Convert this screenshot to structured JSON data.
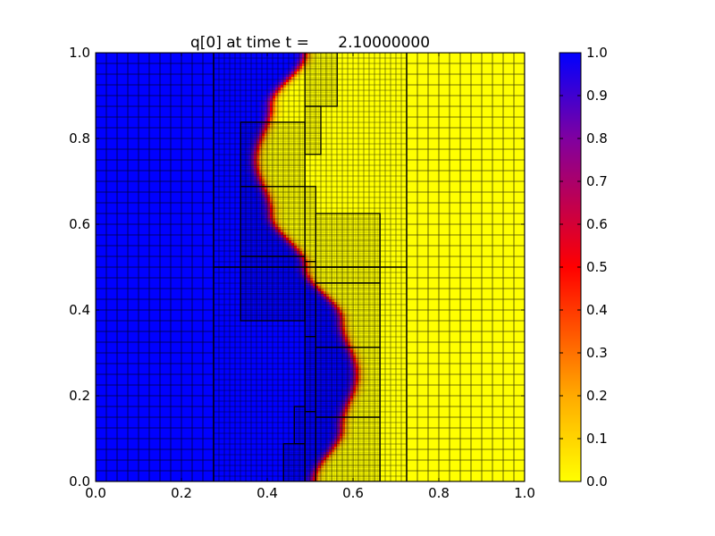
{
  "chart_data": {
    "type": "heatmap",
    "title": "q[0] at time t =      2.10000000",
    "xlabel": "",
    "ylabel": "",
    "xlim": [
      0.0,
      1.0
    ],
    "ylim": [
      0.0,
      1.0
    ],
    "x_ticks": [
      "0.0",
      "0.2",
      "0.4",
      "0.6",
      "0.8",
      "1.0"
    ],
    "y_ticks": [
      "0.0",
      "0.2",
      "0.4",
      "0.6",
      "0.8",
      "1.0"
    ],
    "colorbar": {
      "range": [
        0.0,
        1.0
      ],
      "ticks": [
        "0.0",
        "0.1",
        "0.2",
        "0.3",
        "0.4",
        "0.5",
        "0.6",
        "0.7",
        "0.8",
        "0.9",
        "1.0"
      ],
      "colormap": [
        {
          "value": 0.0,
          "color": "#ffff00"
        },
        {
          "value": 0.2,
          "color": "#ffaa00"
        },
        {
          "value": 0.5,
          "color": "#ff0000"
        },
        {
          "value": 0.8,
          "color": "#8000a0"
        },
        {
          "value": 1.0,
          "color": "#0000ff"
        }
      ]
    },
    "field": {
      "description_value_left": 1.0,
      "description_value_right": 0.0,
      "interface": [
        {
          "y": 0.0,
          "x": 0.51
        },
        {
          "y": 0.125,
          "x": 0.575
        },
        {
          "y": 0.25,
          "x": 0.61
        },
        {
          "y": 0.375,
          "x": 0.575
        },
        {
          "y": 0.5,
          "x": 0.49
        },
        {
          "y": 0.625,
          "x": 0.41
        },
        {
          "y": 0.75,
          "x": 0.375
        },
        {
          "y": 0.875,
          "x": 0.41
        },
        {
          "y": 1.0,
          "x": 0.49
        }
      ],
      "interface_width": 0.025
    },
    "amr_patches": [
      {
        "level": 1,
        "x0": 0.0,
        "x1": 0.275,
        "y0": 0.0,
        "y1": 1.0,
        "dx": 0.025
      },
      {
        "level": 1,
        "x0": 0.725,
        "x1": 1.0,
        "y0": 0.0,
        "y1": 1.0,
        "dx": 0.025
      },
      {
        "level": 2,
        "x0": 0.275,
        "x1": 0.725,
        "y0": 0.0,
        "y1": 0.5,
        "dx": 0.0125
      },
      {
        "level": 2,
        "x0": 0.275,
        "x1": 0.725,
        "y0": 0.5,
        "y1": 1.0,
        "dx": 0.0125
      },
      {
        "level": 3,
        "x0": 0.338,
        "x1": 0.488,
        "y0": 0.375,
        "y1": 0.525,
        "dx": 0.004
      },
      {
        "level": 3,
        "x0": 0.338,
        "x1": 0.488,
        "y0": 0.525,
        "y1": 0.688,
        "dx": 0.004
      },
      {
        "level": 3,
        "x0": 0.338,
        "x1": 0.488,
        "y0": 0.688,
        "y1": 0.838,
        "dx": 0.004
      },
      {
        "level": 3,
        "x0": 0.488,
        "x1": 0.513,
        "y0": 0.513,
        "y1": 0.688,
        "dx": 0.004
      },
      {
        "level": 3,
        "x0": 0.488,
        "x1": 0.563,
        "y0": 0.875,
        "y1": 1.0,
        "dx": 0.004
      },
      {
        "level": 3,
        "x0": 0.488,
        "x1": 0.525,
        "y0": 0.763,
        "y1": 0.875,
        "dx": 0.004
      },
      {
        "level": 3,
        "x0": 0.513,
        "x1": 0.663,
        "y0": 0.5,
        "y1": 0.625,
        "dx": 0.004
      },
      {
        "level": 3,
        "x0": 0.513,
        "x1": 0.663,
        "y0": 0.463,
        "y1": 0.5,
        "dx": 0.004
      },
      {
        "level": 3,
        "x0": 0.513,
        "x1": 0.663,
        "y0": 0.313,
        "y1": 0.463,
        "dx": 0.004
      },
      {
        "level": 3,
        "x0": 0.513,
        "x1": 0.663,
        "y0": 0.15,
        "y1": 0.313,
        "dx": 0.004
      },
      {
        "level": 3,
        "x0": 0.513,
        "x1": 0.663,
        "y0": 0.0,
        "y1": 0.15,
        "dx": 0.004
      },
      {
        "level": 3,
        "x0": 0.488,
        "x1": 0.513,
        "y0": 0.338,
        "y1": 0.513,
        "dx": 0.004
      },
      {
        "level": 3,
        "x0": 0.488,
        "x1": 0.513,
        "y0": 0.163,
        "y1": 0.338,
        "dx": 0.004
      },
      {
        "level": 3,
        "x0": 0.488,
        "x1": 0.513,
        "y0": 0.0,
        "y1": 0.163,
        "dx": 0.004
      },
      {
        "level": 3,
        "x0": 0.463,
        "x1": 0.488,
        "y0": 0.088,
        "y1": 0.175,
        "dx": 0.004
      },
      {
        "level": 3,
        "x0": 0.438,
        "x1": 0.488,
        "y0": 0.0,
        "y1": 0.088,
        "dx": 0.004
      }
    ]
  }
}
